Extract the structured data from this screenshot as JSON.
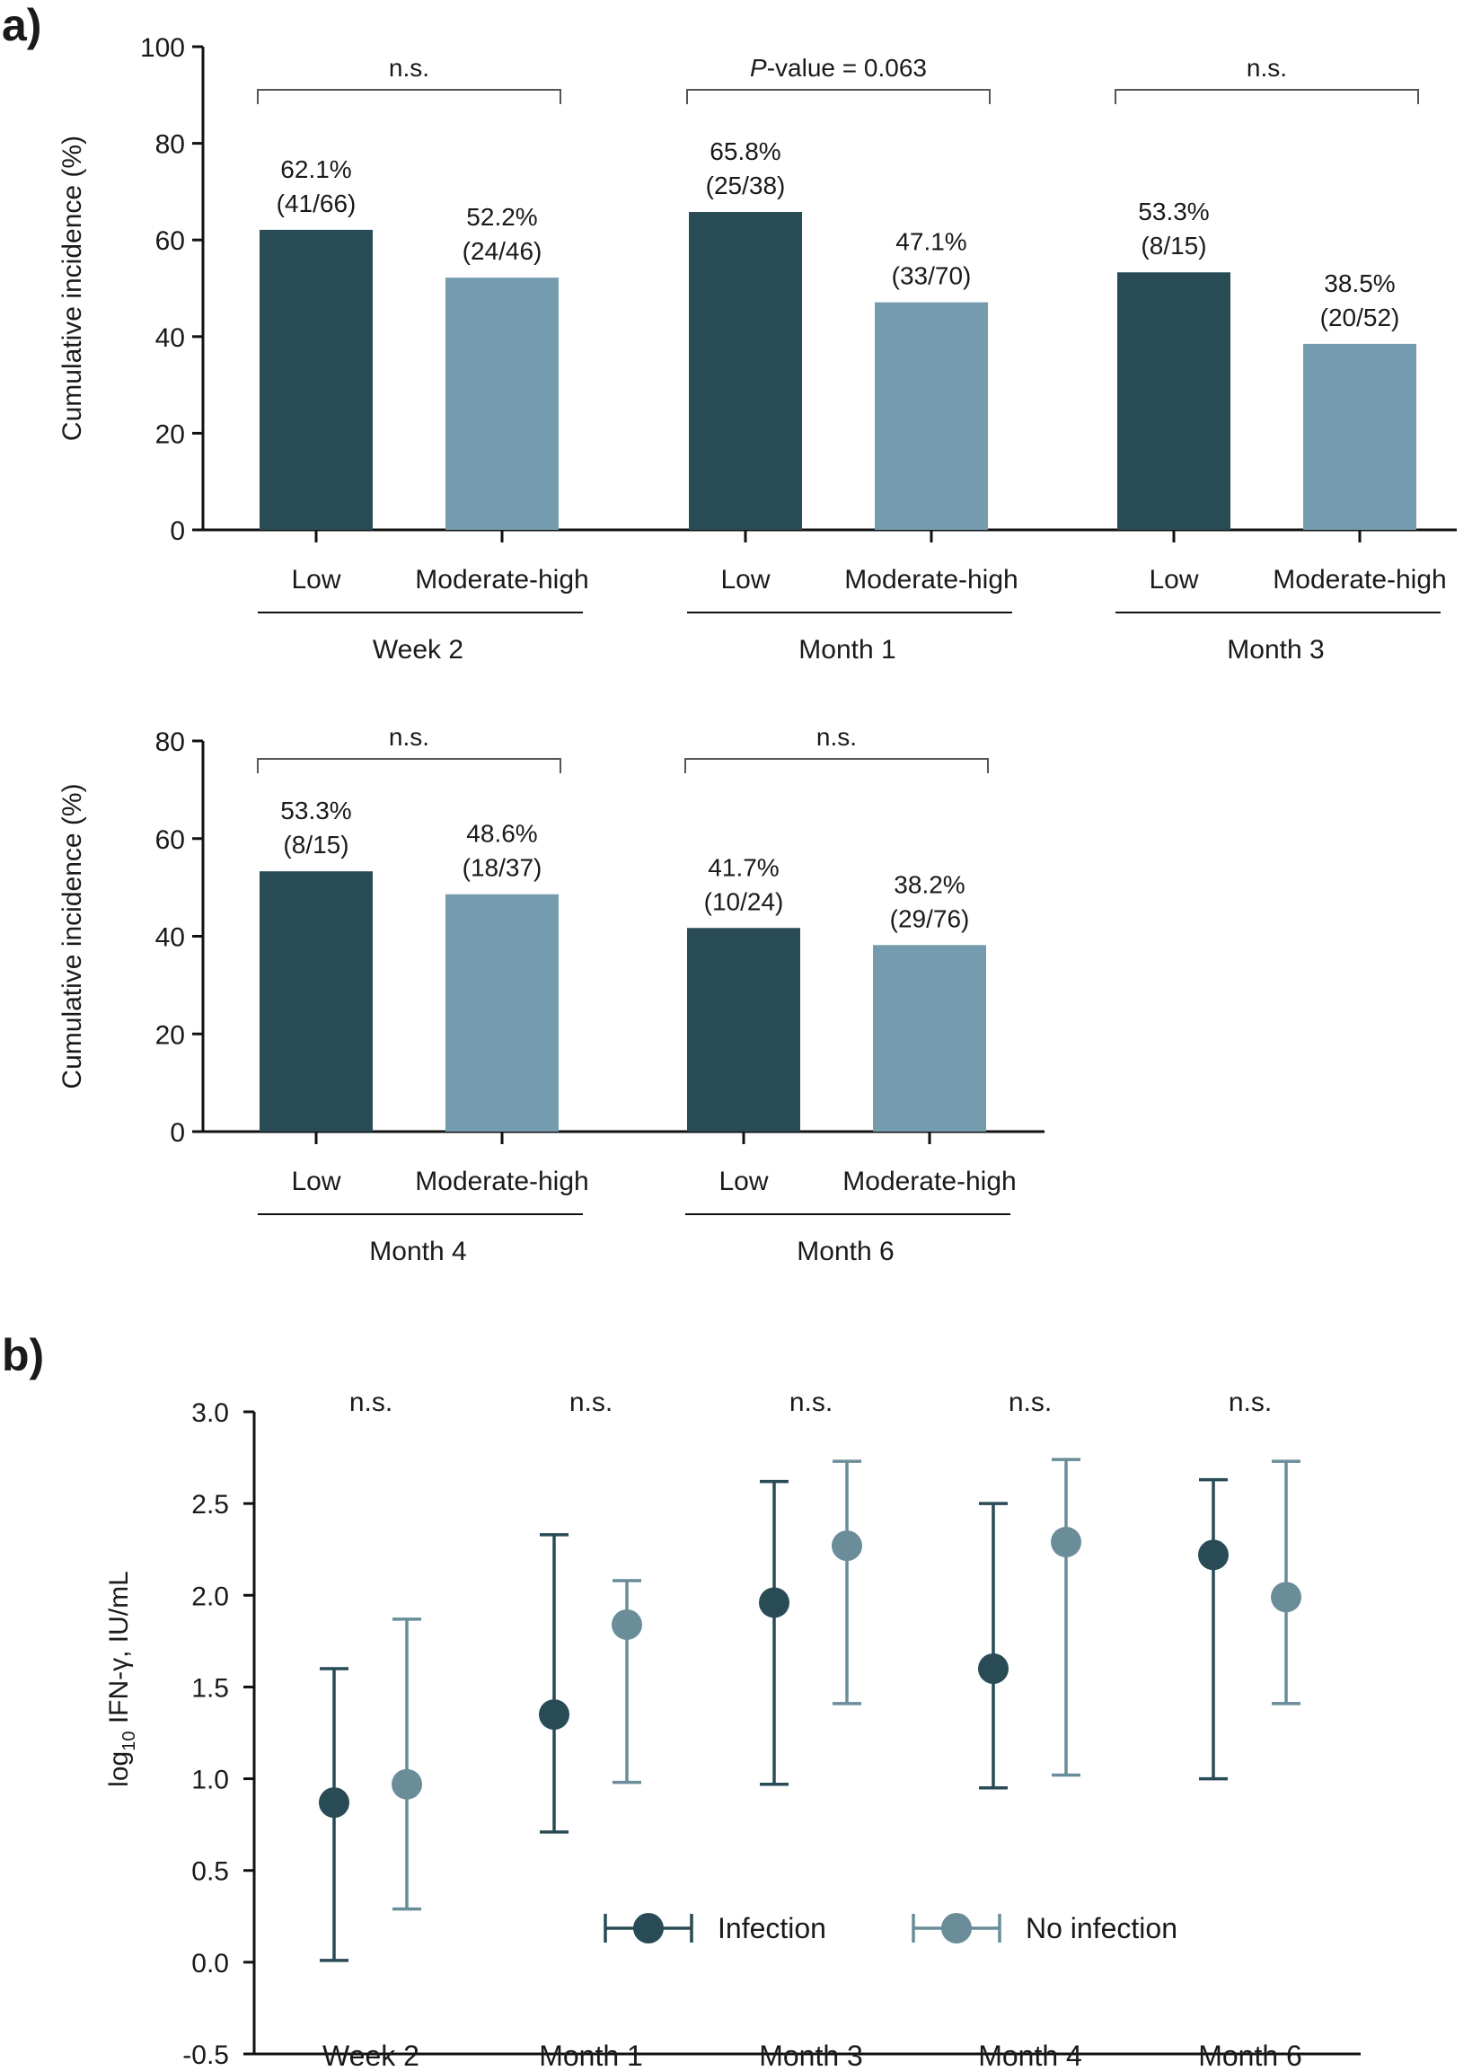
{
  "panel_labels": {
    "a": "a)",
    "b": "b)"
  },
  "colors": {
    "low": "#284b55",
    "moderate_high": "#759cae",
    "infection": "#284b55",
    "no_infection": "#6a8d99",
    "axis": "#111111",
    "bracket": "#555555"
  },
  "chart_data": [
    {
      "type": "bar",
      "ylabel": "Cumulative incidence (%)",
      "ylim": [
        0,
        100
      ],
      "yticks": [
        "0",
        "20",
        "40",
        "60",
        "80",
        "100"
      ],
      "groups": [
        {
          "name": "Week 2",
          "significance": "n.s.",
          "bars": [
            {
              "category": "Low",
              "value": 62.1,
              "pct": "62.1%",
              "count": "(41/66)"
            },
            {
              "category": "Moderate-high",
              "value": 52.2,
              "pct": "52.2%",
              "count": "(24/46)"
            }
          ]
        },
        {
          "name": "Month 1",
          "significance_italic": "P",
          "significance": "-value = 0.063",
          "bars": [
            {
              "category": "Low",
              "value": 65.8,
              "pct": "65.8%",
              "count": "(25/38)"
            },
            {
              "category": "Moderate-high",
              "value": 47.1,
              "pct": "47.1%",
              "count": "(33/70)"
            }
          ]
        },
        {
          "name": "Month 3",
          "significance": "n.s.",
          "bars": [
            {
              "category": "Low",
              "value": 53.3,
              "pct": "53.3%",
              "count": "(8/15)"
            },
            {
              "category": "Moderate-high",
              "value": 38.5,
              "pct": "38.5%",
              "count": "(20/52)"
            }
          ]
        }
      ]
    },
    {
      "type": "bar",
      "ylabel": "Cumulative incidence (%)",
      "ylim": [
        0,
        80
      ],
      "yticks": [
        "0",
        "20",
        "40",
        "60",
        "80"
      ],
      "groups": [
        {
          "name": "Month 4",
          "significance": "n.s.",
          "bars": [
            {
              "category": "Low",
              "value": 53.3,
              "pct": "53.3%",
              "count": "(8/15)"
            },
            {
              "category": "Moderate-high",
              "value": 48.6,
              "pct": "48.6%",
              "count": "(18/37)"
            }
          ]
        },
        {
          "name": "Month 6",
          "significance": "n.s.",
          "bars": [
            {
              "category": "Low",
              "value": 41.7,
              "pct": "41.7%",
              "count": "(10/24)"
            },
            {
              "category": "Moderate-high",
              "value": 38.2,
              "pct": "38.2%",
              "count": "(29/76)"
            }
          ]
        }
      ]
    },
    {
      "type": "scatter",
      "ylabel_prefix": "log",
      "ylabel_sub": "10",
      "ylabel_rest": " IFN-γ, IU/mL",
      "ylim": [
        -0.5,
        3.0
      ],
      "yticks": [
        "-0.5",
        "0.0",
        "0.5",
        "1.0",
        "1.5",
        "2.0",
        "2.5",
        "3.0"
      ],
      "categories": [
        "Week 2",
        "Month 1",
        "Month 3",
        "Month 4",
        "Month 6"
      ],
      "significance": [
        "n.s.",
        "n.s.",
        "n.s.",
        "n.s.",
        "n.s."
      ],
      "legend": {
        "position": "bottom-center"
      },
      "series": [
        {
          "name": "Infection",
          "values": [
            0.87,
            1.35,
            1.96,
            1.6,
            2.22
          ],
          "lower": [
            0.01,
            0.71,
            0.97,
            0.95,
            1.0
          ],
          "upper": [
            1.6,
            2.33,
            2.62,
            2.5,
            2.63
          ]
        },
        {
          "name": "No infection",
          "values": [
            0.97,
            1.84,
            2.27,
            2.29,
            1.99
          ],
          "lower": [
            0.29,
            0.98,
            1.41,
            1.02,
            1.41
          ],
          "upper": [
            1.87,
            2.08,
            2.73,
            2.74,
            2.73
          ]
        }
      ]
    }
  ]
}
